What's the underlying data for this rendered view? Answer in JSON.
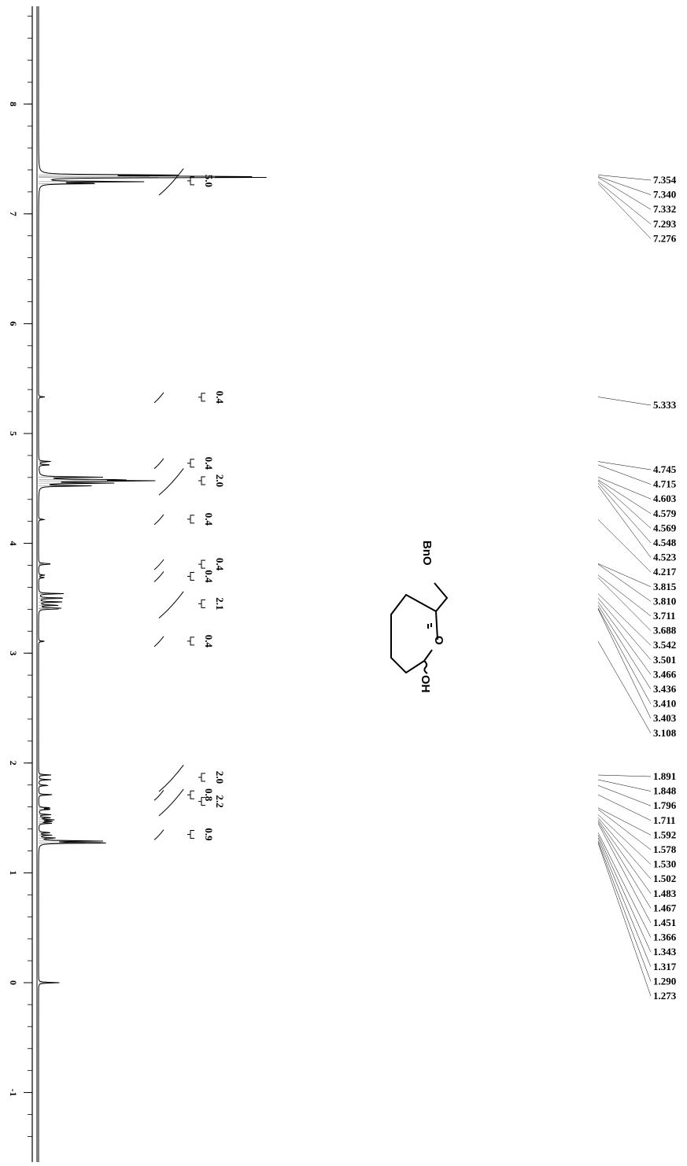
{
  "chart_data": {
    "type": "line",
    "title": "",
    "xlabel": "",
    "ylabel": "",
    "axis_ticks": [
      "8",
      "7",
      "6",
      "5",
      "4",
      "3",
      "2",
      "1",
      "0",
      "-1"
    ],
    "xlim": [
      9.0,
      -1.5
    ],
    "integrations": [
      {
        "center": 7.3,
        "value": "5.0"
      },
      {
        "center": 5.33,
        "value": "0.4"
      },
      {
        "center": 4.73,
        "value": "0.4"
      },
      {
        "center": 4.57,
        "value": "2.0"
      },
      {
        "center": 4.22,
        "value": "0.4"
      },
      {
        "center": 3.81,
        "value": "0.4"
      },
      {
        "center": 3.7,
        "value": "0.4"
      },
      {
        "center": 3.45,
        "value": "2.1"
      },
      {
        "center": 3.11,
        "value": "0.4"
      },
      {
        "center": 1.87,
        "value": "2.0"
      },
      {
        "center": 1.71,
        "value": "0.8"
      },
      {
        "center": 1.65,
        "value": "2.2"
      },
      {
        "center": 1.35,
        "value": "0.9"
      }
    ],
    "peak_groups": [
      {
        "values": [
          "7.354",
          "7.340",
          "7.332",
          "7.293",
          "7.276"
        ]
      },
      {
        "values": [
          "5.333"
        ]
      },
      {
        "values": [
          "4.745",
          "4.715",
          "4.603",
          "4.579",
          "4.569",
          "4.548",
          "4.523",
          "4.217",
          "3.815",
          "3.810",
          "3.711",
          "3.688",
          "3.542",
          "3.501",
          "3.466",
          "3.436",
          "3.410",
          "3.403",
          "3.108"
        ]
      },
      {
        "values": [
          "1.891",
          "1.848",
          "1.796",
          "1.711",
          "1.592",
          "1.578",
          "1.530",
          "1.502",
          "1.483",
          "1.467",
          "1.451",
          "1.366",
          "1.343",
          "1.317",
          "1.290",
          "1.273"
        ]
      }
    ],
    "spectrum_peaks": [
      {
        "ppm": 7.354,
        "height": 0.62
      },
      {
        "ppm": 7.34,
        "height": 0.88
      },
      {
        "ppm": 7.332,
        "height": 0.95
      },
      {
        "ppm": 7.293,
        "height": 0.5
      },
      {
        "ppm": 7.276,
        "height": 0.3
      },
      {
        "ppm": 5.333,
        "height": 0.03
      },
      {
        "ppm": 4.745,
        "height": 0.06
      },
      {
        "ppm": 4.715,
        "height": 0.06
      },
      {
        "ppm": 4.603,
        "height": 0.3
      },
      {
        "ppm": 4.579,
        "height": 0.4
      },
      {
        "ppm": 4.569,
        "height": 0.55
      },
      {
        "ppm": 4.548,
        "height": 0.35
      },
      {
        "ppm": 4.523,
        "height": 0.25
      },
      {
        "ppm": 4.217,
        "height": 0.03
      },
      {
        "ppm": 3.815,
        "height": 0.04
      },
      {
        "ppm": 3.81,
        "height": 0.04
      },
      {
        "ppm": 3.711,
        "height": 0.03
      },
      {
        "ppm": 3.688,
        "height": 0.03
      },
      {
        "ppm": 3.542,
        "height": 0.12
      },
      {
        "ppm": 3.501,
        "height": 0.14
      },
      {
        "ppm": 3.466,
        "height": 0.12
      },
      {
        "ppm": 3.436,
        "height": 0.1
      },
      {
        "ppm": 3.41,
        "height": 0.09
      },
      {
        "ppm": 3.403,
        "height": 0.08
      },
      {
        "ppm": 3.108,
        "height": 0.03
      },
      {
        "ppm": 1.891,
        "height": 0.06
      },
      {
        "ppm": 1.848,
        "height": 0.06
      },
      {
        "ppm": 1.796,
        "height": 0.05
      },
      {
        "ppm": 1.711,
        "height": 0.07
      },
      {
        "ppm": 1.592,
        "height": 0.06
      },
      {
        "ppm": 1.578,
        "height": 0.06
      },
      {
        "ppm": 1.53,
        "height": 0.06
      },
      {
        "ppm": 1.502,
        "height": 0.06
      },
      {
        "ppm": 1.483,
        "height": 0.07
      },
      {
        "ppm": 1.467,
        "height": 0.07
      },
      {
        "ppm": 1.451,
        "height": 0.06
      },
      {
        "ppm": 1.366,
        "height": 0.06
      },
      {
        "ppm": 1.343,
        "height": 0.06
      },
      {
        "ppm": 1.317,
        "height": 0.08
      },
      {
        "ppm": 1.29,
        "height": 0.3
      },
      {
        "ppm": 1.273,
        "height": 0.37
      },
      {
        "ppm": 0.0,
        "height": 0.1
      }
    ],
    "grid": false,
    "orientation": "rotated-90"
  },
  "structure": {
    "bno_label": "BnO",
    "ring_o_label": "O",
    "oh_label": "OH"
  }
}
